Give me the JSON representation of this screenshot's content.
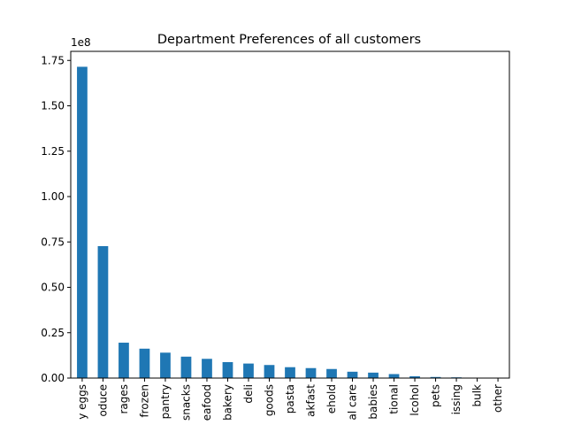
{
  "chart_data": {
    "type": "bar",
    "title": "Department Preferences of all customers",
    "xlabel": "",
    "ylabel": "",
    "y_scale_label": "1e8",
    "ylim": [
      0,
      1.8
    ],
    "yticks": [
      0.0,
      0.25,
      0.5,
      0.75,
      1.0,
      1.25,
      1.5,
      1.75
    ],
    "ytick_labels": [
      "0.00",
      "0.25",
      "0.50",
      "0.75",
      "1.00",
      "1.25",
      "1.50",
      "1.75"
    ],
    "grid": false,
    "legend": "none",
    "bar_color": "#1f77b4",
    "categories": [
      "y eggs",
      "oduce",
      "rages",
      "frozen",
      "pantry",
      "snacks",
      "eafood",
      "bakery",
      "deli",
      "goods",
      "pasta",
      "akfast",
      "ehold",
      "al care",
      "babies",
      "tional",
      "lcohol",
      "pets",
      "issing",
      "bulk",
      "other"
    ],
    "values": [
      1.715,
      0.727,
      0.195,
      0.162,
      0.14,
      0.118,
      0.106,
      0.088,
      0.08,
      0.072,
      0.06,
      0.055,
      0.05,
      0.035,
      0.03,
      0.022,
      0.01,
      0.006,
      0.004,
      0.0008,
      0.0003
    ]
  }
}
